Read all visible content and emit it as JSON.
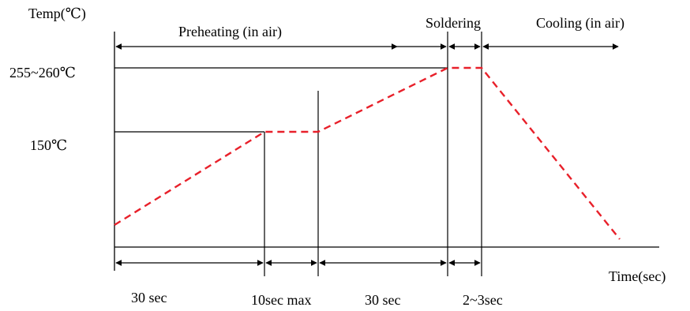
{
  "diagram": {
    "y_axis_label": "Temp(℃)",
    "x_axis_label": "Time(sec)",
    "temp_peak_label": "255~260℃",
    "temp_preheat_label": "150℃",
    "phase_preheating": "Preheating (in air)",
    "phase_soldering": "Soldering",
    "phase_cooling": "Cooling (in air)",
    "time_ramp_up": "30 sec",
    "time_soak": "10sec max",
    "time_ramp_to_peak": "30 sec",
    "time_peak": "2~3sec",
    "profile_color": "#e8202a",
    "line_color": "#000000"
  }
}
